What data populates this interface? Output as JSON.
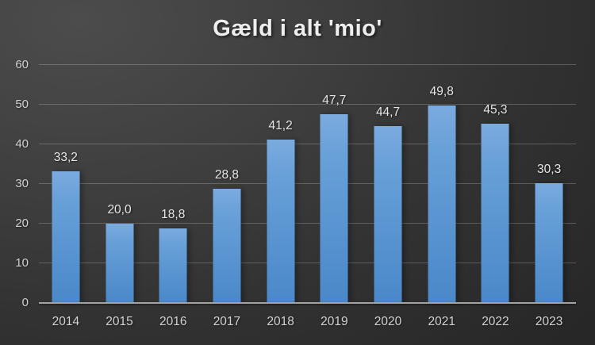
{
  "chart_data": {
    "type": "bar",
    "title": "Gæld i alt 'mio'",
    "categories": [
      "2014",
      "2015",
      "2016",
      "2017",
      "2018",
      "2019",
      "2020",
      "2021",
      "2022",
      "2023"
    ],
    "values": [
      33.2,
      20.0,
      18.8,
      28.8,
      41.2,
      47.7,
      44.7,
      49.8,
      45.3,
      30.3
    ],
    "value_labels": [
      "33,2",
      "20,0",
      "18,8",
      "28,8",
      "41,2",
      "47,7",
      "44,7",
      "49,8",
      "45,3",
      "30,3"
    ],
    "xlabel": "",
    "ylabel": "",
    "ylim": [
      0,
      60
    ],
    "yticks": [
      0,
      10,
      20,
      30,
      40,
      50,
      60
    ],
    "ytick_labels": [
      "0",
      "10",
      "20",
      "30",
      "40",
      "50",
      "60"
    ],
    "grid": true,
    "legend_position": "none",
    "decimal_separator": ",",
    "colors": {
      "bar_gradient_top": "#7babdf",
      "bar_gradient_bottom": "#4a88c9",
      "background_light": "#4c4c4c",
      "background_dark": "#272727",
      "gridline": "rgba(255,255,255,0.22)",
      "axis_line": "#a3a3a3",
      "tick_text": "#d2d2d2",
      "value_text": "#e6e6e6",
      "title_text": "#eeeeee"
    }
  }
}
